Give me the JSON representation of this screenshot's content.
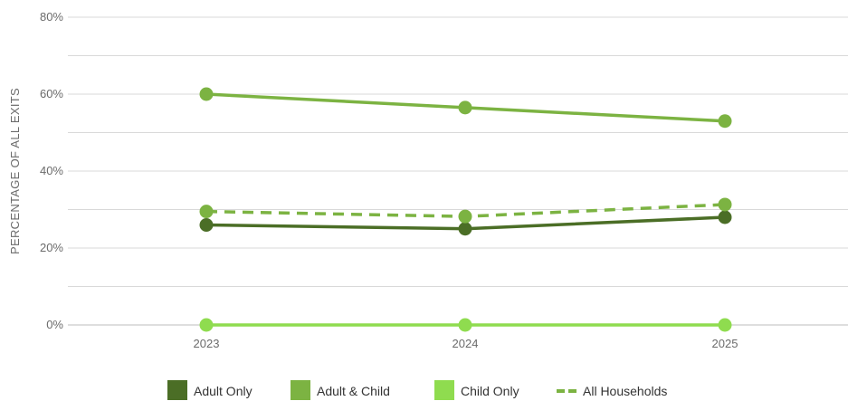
{
  "chart_data": {
    "type": "line",
    "ylabel": "PERCENTAGE OF ALL EXITS",
    "xlabel": "",
    "categories": [
      "2023",
      "2024",
      "2025"
    ],
    "ylim": [
      0,
      80
    ],
    "yticks": [
      "0%",
      "20%",
      "40%",
      "60%",
      "80%"
    ],
    "ytick_values": [
      0,
      20,
      40,
      60,
      80
    ],
    "grid": true,
    "legend_position": "bottom",
    "series": [
      {
        "name": "Adult Only",
        "values": [
          26,
          25,
          28
        ],
        "color": "#4b6e26",
        "style": "solid"
      },
      {
        "name": "Adult & Child",
        "values": [
          60,
          56.5,
          53
        ],
        "color": "#7cb342",
        "style": "solid"
      },
      {
        "name": "Child Only",
        "values": [
          0,
          0,
          0
        ],
        "color": "#8fdc4f",
        "style": "solid"
      },
      {
        "name": "All Households",
        "values": [
          29.5,
          28.2,
          31.3
        ],
        "color": "#7cb342",
        "style": "dashed"
      }
    ]
  }
}
